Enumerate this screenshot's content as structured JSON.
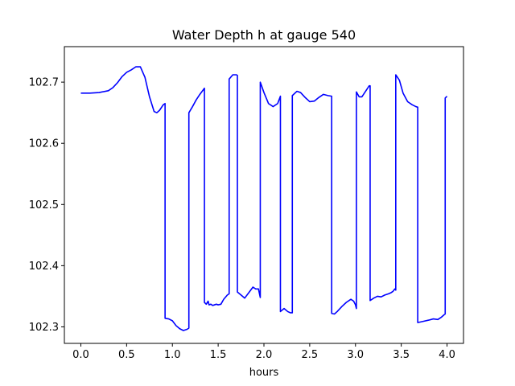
{
  "chart_data": {
    "type": "line",
    "title": "Water Depth h at gauge 540",
    "xlabel": "hours",
    "ylabel": "",
    "xlim": [
      -0.18,
      4.18
    ],
    "ylim": [
      102.273,
      102.758
    ],
    "xticks": [
      0.0,
      0.5,
      1.0,
      1.5,
      2.0,
      2.5,
      3.0,
      3.5,
      4.0
    ],
    "xtick_labels": [
      "0.0",
      "0.5",
      "1.0",
      "1.5",
      "2.0",
      "2.5",
      "3.0",
      "3.5",
      "4.0"
    ],
    "yticks": [
      102.3,
      102.4,
      102.5,
      102.6,
      102.7
    ],
    "ytick_labels": [
      "102.3",
      "102.4",
      "102.5",
      "102.6",
      "102.7"
    ],
    "grid": false,
    "legend": "none",
    "series": [
      {
        "color": "#0000ff",
        "x": [
          0.0,
          0.1,
          0.2,
          0.3,
          0.35,
          0.4,
          0.45,
          0.5,
          0.55,
          0.6,
          0.65,
          0.7,
          0.75,
          0.8,
          0.83,
          0.86,
          0.9,
          0.92,
          0.92,
          0.96,
          1.0,
          1.04,
          1.08,
          1.12,
          1.16,
          1.18,
          1.18,
          1.22,
          1.26,
          1.3,
          1.35,
          1.35,
          1.37,
          1.39,
          1.4,
          1.42,
          1.44,
          1.46,
          1.48,
          1.5,
          1.53,
          1.56,
          1.6,
          1.62,
          1.62,
          1.66,
          1.7,
          1.71,
          1.71,
          1.75,
          1.79,
          1.84,
          1.88,
          1.91,
          1.94,
          1.96,
          1.96,
          2.0,
          2.05,
          2.1,
          2.15,
          2.18,
          2.18,
          2.22,
          2.26,
          2.29,
          2.31,
          2.31,
          2.36,
          2.4,
          2.45,
          2.5,
          2.55,
          2.6,
          2.65,
          2.7,
          2.74,
          2.74,
          2.77,
          2.8,
          2.85,
          2.9,
          2.95,
          2.98,
          3.0,
          3.01,
          3.01,
          3.04,
          3.07,
          3.11,
          3.15,
          3.16,
          3.16,
          3.2,
          3.24,
          3.28,
          3.32,
          3.36,
          3.39,
          3.41,
          3.43,
          3.44,
          3.44,
          3.48,
          3.52,
          3.57,
          3.62,
          3.66,
          3.68,
          3.68,
          3.74,
          3.8,
          3.85,
          3.9,
          3.94,
          3.97,
          3.98,
          3.98,
          4.0
        ],
        "y": [
          102.682,
          102.682,
          102.683,
          102.686,
          102.691,
          102.699,
          102.709,
          102.716,
          102.72,
          102.725,
          102.725,
          102.708,
          102.676,
          102.652,
          102.65,
          102.654,
          102.663,
          102.665,
          102.314,
          102.313,
          102.31,
          102.302,
          102.297,
          102.294,
          102.296,
          102.298,
          102.65,
          102.66,
          102.671,
          102.68,
          102.69,
          102.34,
          102.337,
          102.342,
          102.336,
          102.337,
          102.335,
          102.336,
          102.337,
          102.336,
          102.337,
          102.345,
          102.352,
          102.354,
          102.705,
          102.712,
          102.712,
          102.711,
          102.357,
          102.352,
          102.347,
          102.357,
          102.365,
          102.362,
          102.362,
          102.348,
          102.7,
          102.683,
          102.665,
          102.66,
          102.665,
          102.677,
          102.325,
          102.33,
          102.325,
          102.323,
          102.323,
          102.678,
          102.685,
          102.683,
          102.675,
          102.668,
          102.669,
          102.675,
          102.68,
          102.678,
          102.677,
          102.322,
          102.321,
          102.325,
          102.333,
          102.34,
          102.345,
          102.342,
          102.336,
          102.33,
          102.684,
          102.676,
          102.676,
          102.685,
          102.694,
          102.694,
          102.343,
          102.347,
          102.35,
          102.349,
          102.352,
          102.354,
          102.356,
          102.358,
          102.362,
          102.36,
          102.712,
          102.703,
          102.682,
          102.668,
          102.663,
          102.66,
          102.659,
          102.307,
          102.309,
          102.311,
          102.313,
          102.312,
          102.316,
          102.32,
          102.321,
          102.674,
          102.677
        ]
      }
    ]
  }
}
